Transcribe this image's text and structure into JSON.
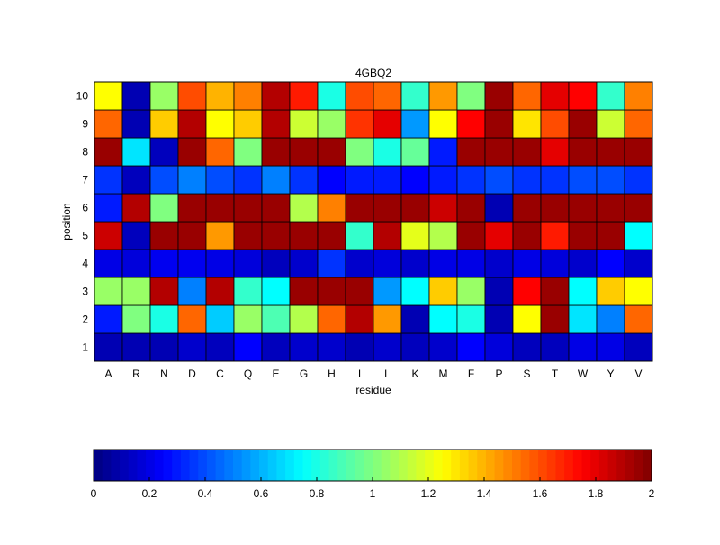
{
  "chart_data": {
    "type": "heatmap",
    "title": "4GBQ2",
    "xlabel": "residue",
    "ylabel": "position",
    "x_categories": [
      "A",
      "R",
      "N",
      "D",
      "C",
      "Q",
      "E",
      "G",
      "H",
      "I",
      "L",
      "K",
      "M",
      "F",
      "P",
      "S",
      "T",
      "W",
      "Y",
      "V"
    ],
    "y_categories": [
      "1",
      "2",
      "3",
      "4",
      "5",
      "6",
      "7",
      "8",
      "9",
      "10"
    ],
    "values": [
      [
        0.1,
        0.1,
        0.1,
        0.15,
        0.12,
        0.25,
        0.12,
        0.15,
        0.15,
        0.1,
        0.15,
        0.12,
        0.15,
        0.25,
        0.18,
        0.12,
        0.12,
        0.2,
        0.2,
        0.12
      ],
      [
        0.3,
        1.0,
        0.8,
        1.55,
        0.65,
        1.05,
        0.9,
        1.1,
        1.55,
        1.9,
        1.45,
        0.1,
        0.75,
        0.8,
        0.1,
        1.25,
        1.95,
        0.7,
        0.5,
        1.55
      ],
      [
        1.05,
        1.05,
        1.9,
        0.5,
        1.9,
        0.85,
        0.75,
        1.95,
        1.95,
        1.95,
        0.55,
        0.75,
        1.35,
        1.05,
        0.1,
        1.75,
        1.95,
        0.75,
        1.35,
        1.25
      ],
      [
        0.2,
        0.18,
        0.22,
        0.22,
        0.2,
        0.18,
        0.12,
        0.15,
        0.35,
        0.15,
        0.18,
        0.15,
        0.2,
        0.2,
        0.15,
        0.2,
        0.18,
        0.15,
        0.25,
        0.15
      ],
      [
        1.85,
        0.12,
        1.95,
        1.95,
        1.45,
        1.95,
        1.95,
        1.95,
        1.95,
        0.85,
        1.9,
        1.2,
        1.1,
        1.95,
        1.8,
        1.95,
        1.7,
        1.95,
        1.95,
        0.75
      ],
      [
        0.3,
        1.9,
        1.0,
        1.95,
        1.95,
        1.95,
        1.95,
        1.1,
        1.5,
        1.95,
        1.95,
        1.95,
        1.85,
        1.95,
        0.1,
        1.95,
        1.95,
        1.95,
        1.95,
        1.95
      ],
      [
        0.35,
        0.12,
        0.4,
        0.5,
        0.4,
        0.35,
        0.5,
        0.35,
        0.25,
        0.3,
        0.3,
        0.25,
        0.3,
        0.35,
        0.4,
        0.35,
        0.35,
        0.4,
        0.4,
        0.35
      ],
      [
        1.95,
        0.7,
        0.12,
        1.95,
        1.55,
        1.0,
        1.95,
        1.95,
        1.95,
        1.0,
        0.8,
        0.95,
        0.3,
        1.95,
        1.95,
        1.95,
        1.8,
        1.95,
        1.95,
        1.95
      ],
      [
        1.55,
        0.1,
        1.35,
        1.9,
        1.25,
        1.35,
        1.9,
        1.15,
        1.05,
        1.65,
        1.8,
        0.55,
        1.25,
        1.75,
        1.95,
        1.3,
        1.6,
        1.95,
        1.15,
        1.55
      ],
      [
        1.25,
        0.1,
        1.05,
        1.6,
        1.4,
        1.5,
        1.9,
        1.7,
        0.8,
        1.6,
        1.55,
        0.85,
        1.45,
        1.0,
        1.95,
        1.55,
        1.8,
        1.75,
        0.85,
        1.5
      ]
    ],
    "clim": [
      0,
      2
    ],
    "colormap": "jet",
    "colorbar": {
      "placement": "bottom",
      "ticks": [
        "0",
        "0.2",
        "0.4",
        "0.6",
        "0.8",
        "1",
        "1.2",
        "1.4",
        "1.6",
        "1.8",
        "2"
      ]
    },
    "grid": false
  }
}
